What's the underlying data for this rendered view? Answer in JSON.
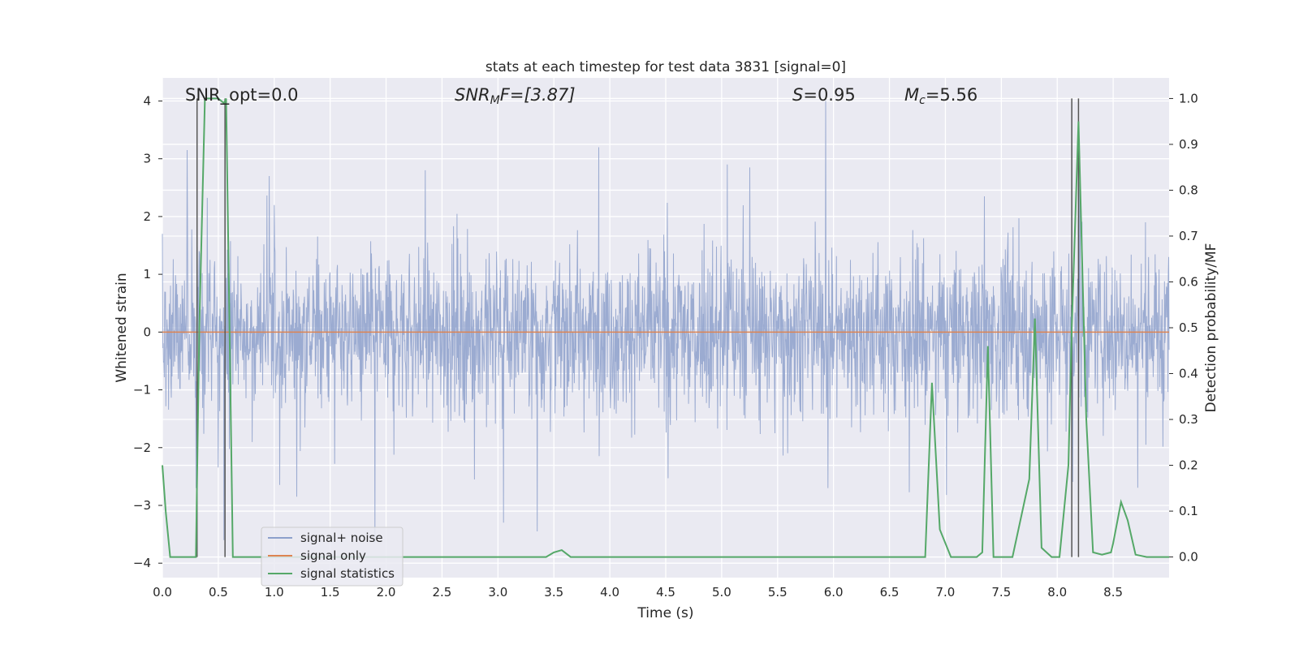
{
  "chart_data": {
    "type": "line",
    "title": "stats at each timestep for test data 3831 [signal=0]",
    "xlabel": "Time (s)",
    "ylabel": "Whitened strain",
    "ylabel_right": "Detection probability/MF",
    "xlim": [
      0.0,
      9.0
    ],
    "ylim": [
      -4.25,
      4.4
    ],
    "ylim_right": [
      -0.045,
      1.045
    ],
    "x_ticks": [
      "0.0",
      "0.5",
      "1.0",
      "1.5",
      "2.0",
      "2.5",
      "3.0",
      "3.5",
      "4.0",
      "4.5",
      "5.0",
      "5.5",
      "6.0",
      "6.5",
      "7.0",
      "7.5",
      "8.0",
      "8.5"
    ],
    "y_ticks": [
      "−4",
      "−3",
      "−2",
      "−1",
      "0",
      "1",
      "2",
      "3",
      "4"
    ],
    "y_ticks_right": [
      "0.0",
      "0.1",
      "0.2",
      "0.3",
      "0.4",
      "0.5",
      "0.6",
      "0.7",
      "0.8",
      "0.9",
      "1.0"
    ],
    "grid": true,
    "legend_position": "lower-left",
    "annotations": {
      "snr_opt": "SNR_opt=0.0",
      "snr_mf_sym": "SNR",
      "snr_mf_sub": "M",
      "snr_mf_rest": "F=[3.87]",
      "s_sym": "S",
      "s_rest": "=0.95",
      "mc_sym": "M",
      "mc_sub": "c",
      "mc_rest": "=5.56"
    },
    "series": [
      {
        "name": "signal+ noise",
        "color": "#8da0cb",
        "description_points": [
          [
            0.0,
            1.7
          ],
          [
            0.22,
            3.15
          ],
          [
            0.3,
            -2.7
          ],
          [
            0.55,
            -3.6
          ],
          [
            1.0,
            2.2
          ],
          [
            1.2,
            -2.85
          ],
          [
            1.9,
            -3.65
          ],
          [
            2.35,
            2.8
          ],
          [
            3.05,
            -3.3
          ],
          [
            3.35,
            -3.45
          ],
          [
            3.9,
            3.2
          ],
          [
            5.05,
            2.9
          ],
          [
            5.25,
            2.85
          ],
          [
            5.93,
            4.0
          ],
          [
            5.95,
            -2.7
          ],
          [
            7.35,
            2.35
          ],
          [
            8.2,
            2.6
          ]
        ]
      },
      {
        "name": "signal only",
        "color": "#dd8452",
        "x": [
          0.0,
          9.0
        ],
        "y": [
          0.0,
          0.0
        ]
      },
      {
        "name": "signal statistics",
        "color": "#55a868",
        "axis": "right",
        "x": [
          0.0,
          0.03,
          0.07,
          0.15,
          0.3,
          0.33,
          0.38,
          0.5,
          0.55,
          0.57,
          0.6,
          0.63,
          0.7,
          3.43,
          3.5,
          3.57,
          3.65,
          4.6,
          6.82,
          6.88,
          6.95,
          7.05,
          7.28,
          7.33,
          7.38,
          7.43,
          7.5,
          7.6,
          7.75,
          7.8,
          7.86,
          7.95,
          8.02,
          8.1,
          8.13,
          8.19,
          8.26,
          8.32,
          8.4,
          8.48,
          8.5,
          8.57,
          8.63,
          8.7,
          8.8,
          9.0
        ],
        "y": [
          0.2,
          0.1,
          0.0,
          0.0,
          0.0,
          0.5,
          1.0,
          1.0,
          0.99,
          1.0,
          0.5,
          0.0,
          0.0,
          0.0,
          0.01,
          0.015,
          0.0,
          0.0,
          0.0,
          0.38,
          0.06,
          0.0,
          0.0,
          0.01,
          0.46,
          0.0,
          0.0,
          0.0,
          0.17,
          0.52,
          0.02,
          0.0,
          0.0,
          0.2,
          0.5,
          0.95,
          0.3,
          0.01,
          0.005,
          0.01,
          0.03,
          0.12,
          0.08,
          0.005,
          0.0,
          0.0
        ]
      }
    ],
    "vertical_markers": {
      "color": "#555555",
      "x": [
        0.31,
        0.56,
        8.13,
        8.19
      ]
    }
  }
}
